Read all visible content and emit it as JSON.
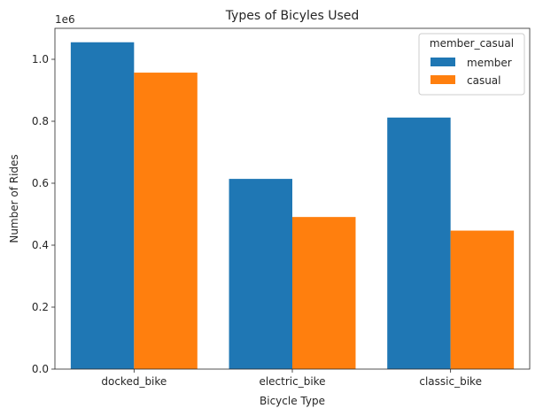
{
  "chart_data": {
    "type": "bar",
    "title": "Types of Bicyles Used",
    "xlabel": "Bicycle Type",
    "ylabel": "Number of Rides",
    "y_offset_label": "1e6",
    "categories": [
      "docked_bike",
      "electric_bike",
      "classic_bike"
    ],
    "series": [
      {
        "name": "member",
        "color": "#1f77b4",
        "values": [
          1055000,
          614000,
          812000
        ]
      },
      {
        "name": "casual",
        "color": "#ff7f0e",
        "values": [
          957000,
          491000,
          447000
        ]
      }
    ],
    "ylim": [
      0,
      1100000
    ],
    "yticks": [
      {
        "value": 0,
        "label": "0.0"
      },
      {
        "value": 200000,
        "label": "0.2"
      },
      {
        "value": 400000,
        "label": "0.4"
      },
      {
        "value": 600000,
        "label": "0.6"
      },
      {
        "value": 800000,
        "label": "0.8"
      },
      {
        "value": 1000000,
        "label": "1.0"
      }
    ],
    "legend": {
      "title": "member_casual",
      "placement": "top-right"
    },
    "grid": false
  }
}
